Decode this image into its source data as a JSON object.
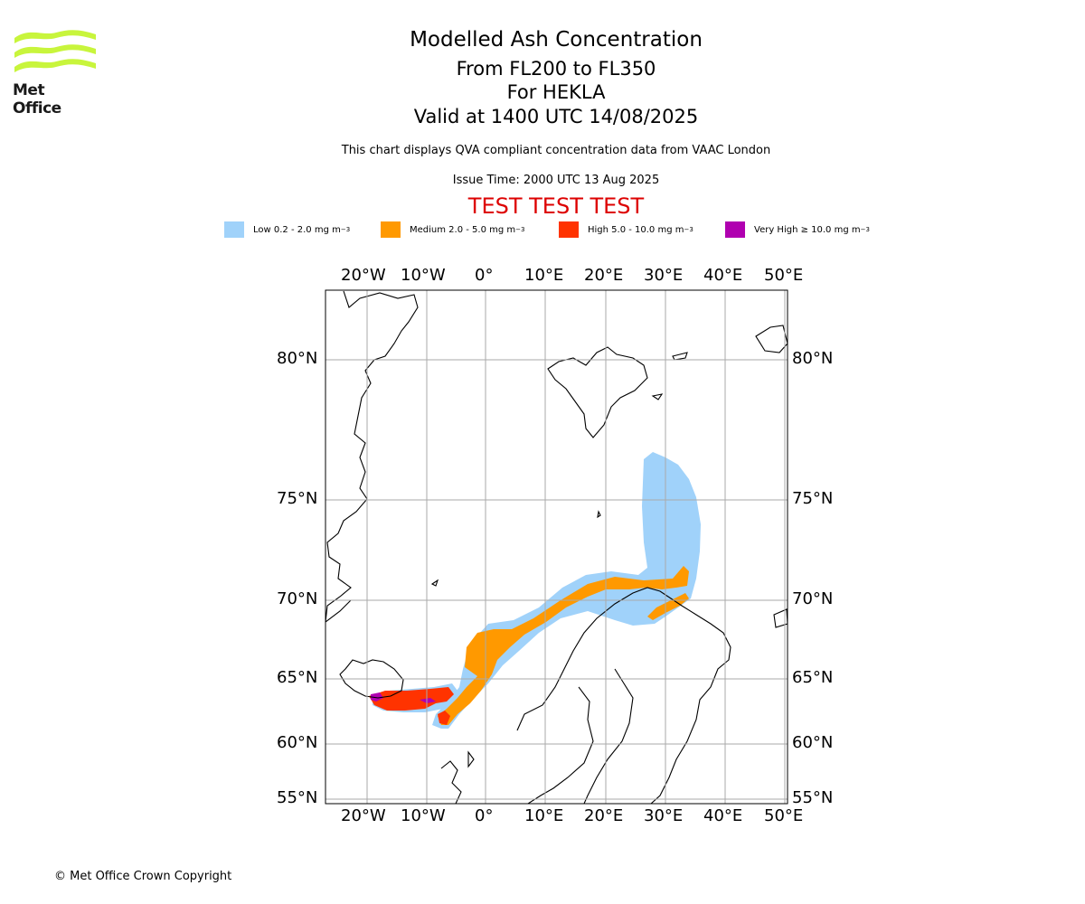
{
  "header": {
    "title": "Modelled Ash Concentration",
    "levels": "From FL200 to FL350",
    "volcano": "For HEKLA",
    "valid": "Valid at 1400 UTC 14/08/2025",
    "disclaimer": "This chart displays QVA compliant concentration data from VAAC London",
    "issue_time": "Issue Time: 2000 UTC 13 Aug 2025",
    "test_banner": "TEST TEST TEST"
  },
  "logo": {
    "text": "Met Office",
    "color": "#c8f53c"
  },
  "legend": [
    {
      "label": "Low 0.2 - 2.0 mg m",
      "unit": "−3",
      "color": "#a0d2fa"
    },
    {
      "label": "Medium 2.0 - 5.0 mg m",
      "unit": "−3",
      "color": "#ff9900"
    },
    {
      "label": "High 5.0 - 10.0 mg m",
      "unit": "−3",
      "color": "#ff3300"
    },
    {
      "label": "Very High  ≥  10.0 mg m",
      "unit": "−3",
      "color": "#b000b0"
    }
  ],
  "map": {
    "lon_labels": [
      "20°W",
      "10°W",
      "0°",
      "10°E",
      "20°E",
      "30°E",
      "40°E",
      "50°E"
    ],
    "lat_labels": [
      "80°N",
      "75°N",
      "70°N",
      "65°N",
      "60°N",
      "55°N"
    ],
    "grid": true
  },
  "footer": {
    "copyright": "© Met Office Crown Copyright"
  }
}
